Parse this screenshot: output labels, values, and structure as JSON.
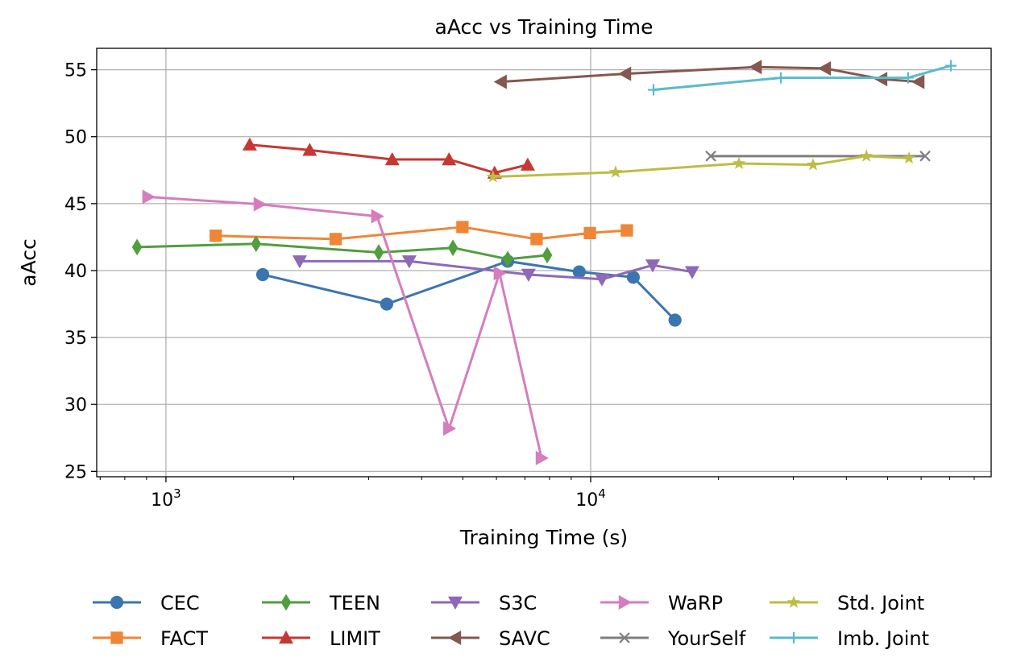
{
  "chart_data": {
    "type": "line",
    "title": "aAcc vs Training Time",
    "xlabel": "Training Time (s)",
    "ylabel": "aAcc",
    "xscale": "log",
    "xlim": [
      687,
      87700
    ],
    "ylim": [
      24.6,
      56.6
    ],
    "xticks": [
      1000,
      10000
    ],
    "xtick_labels": [
      {
        "base": "10",
        "exp": "3"
      },
      {
        "base": "10",
        "exp": "4"
      }
    ],
    "yticks": [
      25,
      30,
      35,
      40,
      45,
      50,
      55
    ],
    "ytick_labels": [
      "25",
      "30",
      "35",
      "40",
      "45",
      "50",
      "55"
    ],
    "grid": true,
    "legend_placement": "bottom",
    "series": [
      {
        "name": "CEC",
        "color": "#3b75af",
        "marker": "circle",
        "x": [
          1690,
          3310,
          6380,
          9400,
          12600,
          15800
        ],
        "y": [
          39.7,
          37.5,
          40.7,
          39.9,
          39.5,
          36.3
        ]
      },
      {
        "name": "FACT",
        "color": "#ef8636",
        "marker": "square",
        "x": [
          1310,
          2510,
          4990,
          7460,
          9960,
          12170
        ],
        "y": [
          42.6,
          42.35,
          43.25,
          42.35,
          42.8,
          43.0
        ]
      },
      {
        "name": "TEEN",
        "color": "#519e3e",
        "marker": "diamond",
        "x": [
          855,
          1630,
          3170,
          4740,
          6380,
          7900
        ],
        "y": [
          41.75,
          42.0,
          41.35,
          41.7,
          40.85,
          41.15
        ]
      },
      {
        "name": "LIMIT",
        "color": "#c53932",
        "marker": "triangle-up",
        "x": [
          1575,
          2180,
          3410,
          4640,
          5940,
          7110
        ],
        "y": [
          49.4,
          49.0,
          48.3,
          48.3,
          47.3,
          47.9
        ]
      },
      {
        "name": "S3C",
        "color": "#8d69b8",
        "marker": "triangle-down",
        "x": [
          2065,
          3740,
          7140,
          10630,
          14000,
          17340
        ],
        "y": [
          40.7,
          40.7,
          39.7,
          39.35,
          40.4,
          39.9
        ]
      },
      {
        "name": "SAVC",
        "color": "#84584e",
        "marker": "triangle-left",
        "x": [
          6150,
          12070,
          24500,
          35650,
          48400,
          59200
        ],
        "y": [
          54.1,
          54.7,
          55.2,
          55.1,
          54.3,
          54.1
        ]
      },
      {
        "name": "WaRP",
        "color": "#d57dbf",
        "marker": "triangle-right",
        "x": [
          908,
          1660,
          3140,
          4640,
          6100,
          7660
        ],
        "y": [
          45.5,
          44.95,
          44.05,
          28.2,
          39.8,
          26.0
        ]
      },
      {
        "name": "YourSelf",
        "color": "#7f7f7f",
        "marker": "x",
        "x": [
          19180,
          61300
        ],
        "y": [
          48.55,
          48.55
        ]
      },
      {
        "name": "Std. Joint",
        "color": "#bcbd45",
        "marker": "star",
        "x": [
          5890,
          11450,
          22350,
          33400,
          44600,
          56200
        ],
        "y": [
          47.0,
          47.35,
          48.0,
          47.9,
          48.55,
          48.4
        ]
      },
      {
        "name": "Imb. Joint",
        "color": "#58bbcc",
        "marker": "plus",
        "x": [
          14060,
          28050,
          55900,
          70500
        ],
        "y": [
          53.5,
          54.4,
          54.4,
          55.3
        ]
      }
    ]
  }
}
